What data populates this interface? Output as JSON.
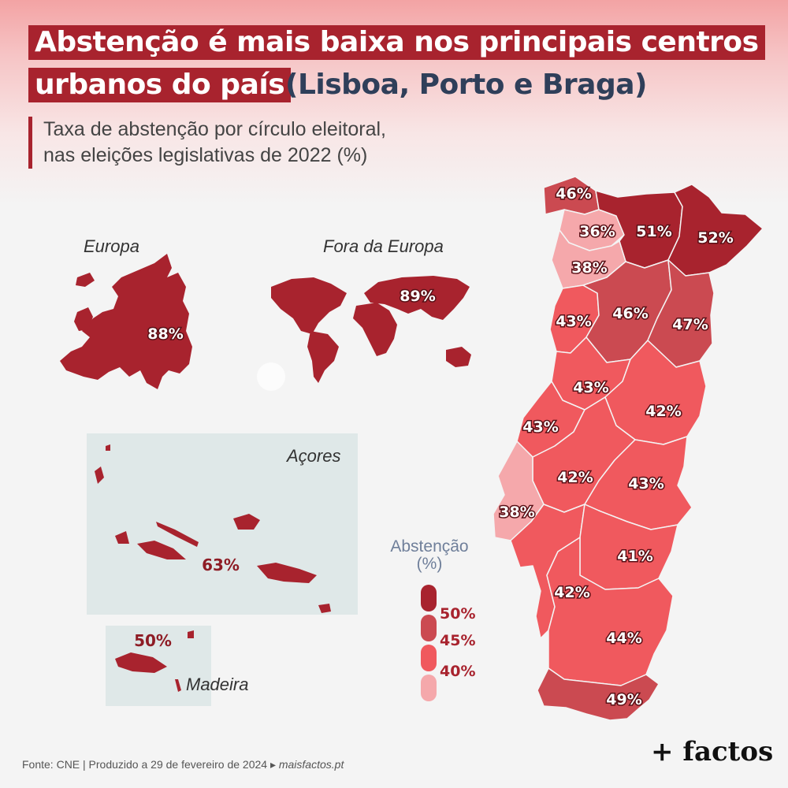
{
  "title": {
    "line1": "Abstenção é mais baixa nos principais centros",
    "line2": "urbanos do país",
    "highlight": "(Lisboa, Porto e Braga)"
  },
  "subtitle": {
    "line1": "Taxa de abstenção por círculo eleitoral,",
    "line2": "nas eleições legislativas de 2022 (%)"
  },
  "colors": {
    "above_50": "#a8232e",
    "45_to_50": "#cb4a51",
    "40_to_45": "#f0595e",
    "below_40": "#f5a8ab"
  },
  "inset_maps": {
    "europa": {
      "label": "Europa",
      "value": "88%"
    },
    "fora_da_europa": {
      "label": "Fora da Europa",
      "value": "89%"
    },
    "acores": {
      "label": "Açores",
      "value": "63%"
    },
    "madeira": {
      "label": "Madeira",
      "value": "50%"
    }
  },
  "districts": [
    {
      "value": "46%"
    },
    {
      "value": "36%"
    },
    {
      "value": "51%"
    },
    {
      "value": "52%"
    },
    {
      "value": "38%"
    },
    {
      "value": "43%"
    },
    {
      "value": "46%"
    },
    {
      "value": "47%"
    },
    {
      "value": "43%"
    },
    {
      "value": "42%"
    },
    {
      "value": "43%"
    },
    {
      "value": "42%"
    },
    {
      "value": "43%"
    },
    {
      "value": "38%"
    },
    {
      "value": "41%"
    },
    {
      "value": "42%"
    },
    {
      "value": "44%"
    },
    {
      "value": "49%"
    }
  ],
  "legend": {
    "title_line1": "Abstenção",
    "title_line2": "(%)",
    "ticks": [
      "50%",
      "45%",
      "40%"
    ]
  },
  "footer": {
    "source": "Fonte: CNE | Produzido a 29 de fevereiro de 2024 ▸ ",
    "site": "maisfactos.pt"
  },
  "brand": "+ factos"
}
